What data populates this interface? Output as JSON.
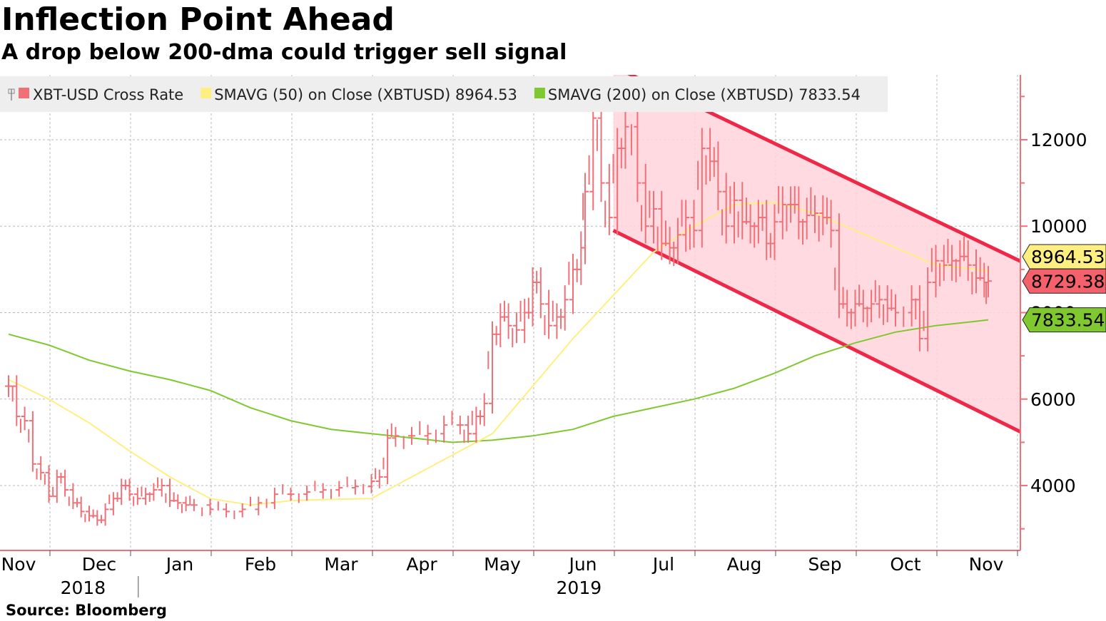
{
  "title": "Inflection Point Ahead",
  "subtitle": "A drop below 200-dma could trigger sell signal",
  "source": "Source: Bloomberg",
  "colors": {
    "price": "#f07078",
    "sma50": "#ffef80",
    "sma200": "#80c830",
    "channel_fill": "#ffd5dc",
    "channel_line": "#f02848",
    "axis": "#f07078",
    "grid": "#b8b8b8",
    "legend_bg": "#eeeeee"
  },
  "legend": [
    {
      "label": "XBT-USD Cross Rate",
      "color": "#f07078",
      "icon": "ohlc-bar-icon"
    },
    {
      "label": "SMAVG (50)  on Close (XBTUSD) 8964.53",
      "color": "#ffef80",
      "icon": "square-icon"
    },
    {
      "label": "SMAVG (200)  on Close (XBTUSD) 7833.54",
      "color": "#80c830",
      "icon": "square-icon"
    }
  ],
  "chart_data": {
    "type": "line",
    "title": "Inflection Point Ahead",
    "subtitle": "A drop below 200-dma could trigger sell signal",
    "ylim": [
      2500,
      13500
    ],
    "y_ticks": [
      4000,
      6000,
      8000,
      10000,
      12000
    ],
    "x_range": [
      0,
      12.65
    ],
    "month_ticks": [
      {
        "label": "Nov",
        "x": 0
      },
      {
        "label": "Dec",
        "x": 1
      },
      {
        "label": "Jan",
        "x": 2
      },
      {
        "label": "Feb",
        "x": 3
      },
      {
        "label": "Mar",
        "x": 4
      },
      {
        "label": "Apr",
        "x": 5
      },
      {
        "label": "May",
        "x": 6
      },
      {
        "label": "Jun",
        "x": 7
      },
      {
        "label": "Jul",
        "x": 8
      },
      {
        "label": "Aug",
        "x": 9
      },
      {
        "label": "Sep",
        "x": 10
      },
      {
        "label": "Oct",
        "x": 11
      },
      {
        "label": "Nov",
        "x": 12
      }
    ],
    "year_labels": [
      {
        "label": "2018",
        "x": 0.8
      },
      {
        "label": "2019",
        "x": 6.95
      }
    ],
    "year_divider_x": 1.6,
    "series": [
      {
        "name": "XBT-USD Cross Rate",
        "kind": "ohlc",
        "points": [
          [
            0.0,
            6300
          ],
          [
            0.1,
            5600
          ],
          [
            0.2,
            5500
          ],
          [
            0.3,
            4500
          ],
          [
            0.4,
            4300
          ],
          [
            0.5,
            3750
          ],
          [
            0.6,
            4200
          ],
          [
            0.7,
            3900
          ],
          [
            0.8,
            3600
          ],
          [
            0.9,
            3400
          ],
          [
            1.0,
            3300
          ],
          [
            1.1,
            3200
          ],
          [
            1.2,
            3450
          ],
          [
            1.3,
            3700
          ],
          [
            1.4,
            4000
          ],
          [
            1.5,
            3800
          ],
          [
            1.6,
            3700
          ],
          [
            1.7,
            3800
          ],
          [
            1.8,
            3900
          ],
          [
            1.9,
            4000
          ],
          [
            2.0,
            3650
          ],
          [
            2.1,
            3600
          ],
          [
            2.2,
            3550
          ],
          [
            2.3,
            3550
          ],
          [
            2.5,
            3450
          ],
          [
            2.7,
            3400
          ],
          [
            2.9,
            3450
          ],
          [
            3.1,
            3600
          ],
          [
            3.3,
            3800
          ],
          [
            3.5,
            3800
          ],
          [
            3.7,
            3850
          ],
          [
            3.9,
            3900
          ],
          [
            4.1,
            3950
          ],
          [
            4.3,
            3980
          ],
          [
            4.5,
            4100
          ],
          [
            4.6,
            4200
          ],
          [
            4.7,
            5100
          ],
          [
            4.8,
            5150
          ],
          [
            5.0,
            5150
          ],
          [
            5.2,
            5200
          ],
          [
            5.4,
            5400
          ],
          [
            5.6,
            5400
          ],
          [
            5.7,
            5200
          ],
          [
            5.8,
            5600
          ],
          [
            5.9,
            5900
          ],
          [
            6.0,
            7500
          ],
          [
            6.1,
            7900
          ],
          [
            6.2,
            7700
          ],
          [
            6.3,
            7600
          ],
          [
            6.4,
            8000
          ],
          [
            6.5,
            8700
          ],
          [
            6.6,
            8200
          ],
          [
            6.7,
            7700
          ],
          [
            6.8,
            7900
          ],
          [
            6.9,
            8300
          ],
          [
            7.0,
            9000
          ],
          [
            7.1,
            9500
          ],
          [
            7.15,
            10800
          ],
          [
            7.25,
            12500
          ],
          [
            7.35,
            11000
          ],
          [
            7.45,
            10200
          ],
          [
            7.55,
            11800
          ],
          [
            7.65,
            12300
          ],
          [
            7.8,
            11000
          ],
          [
            7.9,
            10000
          ],
          [
            8.0,
            10400
          ],
          [
            8.1,
            9600
          ],
          [
            8.2,
            9500
          ],
          [
            8.3,
            9800
          ],
          [
            8.4,
            10200
          ],
          [
            8.5,
            9900
          ],
          [
            8.6,
            11800
          ],
          [
            8.7,
            11500
          ],
          [
            8.8,
            10800
          ],
          [
            8.9,
            10000
          ],
          [
            9.0,
            10600
          ],
          [
            9.1,
            10100
          ],
          [
            9.2,
            10000
          ],
          [
            9.3,
            10200
          ],
          [
            9.4,
            9600
          ],
          [
            9.5,
            10100
          ],
          [
            9.6,
            10500
          ],
          [
            9.7,
            10500
          ],
          [
            9.8,
            10100
          ],
          [
            9.9,
            10250
          ],
          [
            10.0,
            10300
          ],
          [
            10.1,
            10200
          ],
          [
            10.2,
            9900
          ],
          [
            10.3,
            8200
          ],
          [
            10.4,
            8000
          ],
          [
            10.5,
            8200
          ],
          [
            10.6,
            8100
          ],
          [
            10.7,
            8200
          ],
          [
            10.8,
            8300
          ],
          [
            10.9,
            8100
          ],
          [
            11.0,
            8000
          ],
          [
            11.2,
            8300
          ],
          [
            11.3,
            7400
          ],
          [
            11.4,
            8700
          ],
          [
            11.5,
            9200
          ],
          [
            11.6,
            9100
          ],
          [
            11.7,
            9200
          ],
          [
            11.8,
            9300
          ],
          [
            11.9,
            9100
          ],
          [
            12.0,
            8800
          ],
          [
            12.1,
            8700
          ],
          [
            12.15,
            8729.38
          ]
        ]
      },
      {
        "name": "SMAVG (50)  on Close (XBTUSD)",
        "kind": "line",
        "last_value": 8964.53,
        "points": [
          [
            0.0,
            6450
          ],
          [
            0.5,
            6000
          ],
          [
            1.0,
            5450
          ],
          [
            1.5,
            4800
          ],
          [
            2.0,
            4200
          ],
          [
            2.5,
            3700
          ],
          [
            3.0,
            3550
          ],
          [
            3.5,
            3650
          ],
          [
            4.0,
            3680
          ],
          [
            4.5,
            3700
          ],
          [
            5.0,
            4200
          ],
          [
            5.5,
            4700
          ],
          [
            6.0,
            5200
          ],
          [
            6.5,
            6300
          ],
          [
            7.0,
            7400
          ],
          [
            7.5,
            8400
          ],
          [
            8.0,
            9400
          ],
          [
            8.5,
            10000
          ],
          [
            9.0,
            10500
          ],
          [
            9.5,
            10550
          ],
          [
            10.0,
            10300
          ],
          [
            10.5,
            9900
          ],
          [
            11.0,
            9500
          ],
          [
            11.5,
            9100
          ],
          [
            12.0,
            9000
          ],
          [
            12.15,
            8964.53
          ]
        ]
      },
      {
        "name": "SMAVG (200)  on Close (XBTUSD)",
        "kind": "line",
        "last_value": 7833.54,
        "points": [
          [
            0.0,
            7500
          ],
          [
            0.5,
            7250
          ],
          [
            1.0,
            6900
          ],
          [
            1.5,
            6650
          ],
          [
            2.0,
            6450
          ],
          [
            2.5,
            6200
          ],
          [
            3.0,
            5800
          ],
          [
            3.5,
            5500
          ],
          [
            4.0,
            5300
          ],
          [
            4.5,
            5200
          ],
          [
            5.0,
            5100
          ],
          [
            5.5,
            5000
          ],
          [
            6.0,
            5050
          ],
          [
            6.5,
            5150
          ],
          [
            7.0,
            5300
          ],
          [
            7.5,
            5600
          ],
          [
            8.0,
            5800
          ],
          [
            8.5,
            6000
          ],
          [
            9.0,
            6250
          ],
          [
            9.5,
            6600
          ],
          [
            10.0,
            7000
          ],
          [
            10.5,
            7300
          ],
          [
            11.0,
            7550
          ],
          [
            11.5,
            7700
          ],
          [
            12.0,
            7800
          ],
          [
            12.15,
            7833.54
          ]
        ]
      }
    ],
    "channel": {
      "upper": [
        [
          7.5,
          13700
        ],
        [
          12.65,
          9100
        ]
      ],
      "lower": [
        [
          7.5,
          9900
        ],
        [
          12.65,
          5150
        ]
      ]
    },
    "end_labels": [
      {
        "text": "8964.53",
        "value": 8964.53,
        "color": "#ffef80"
      },
      {
        "text": "8729.38",
        "value": 8729.38,
        "color": "#f5616b"
      },
      {
        "text": "7833.54",
        "value": 7833.54,
        "color": "#80c830"
      }
    ]
  }
}
